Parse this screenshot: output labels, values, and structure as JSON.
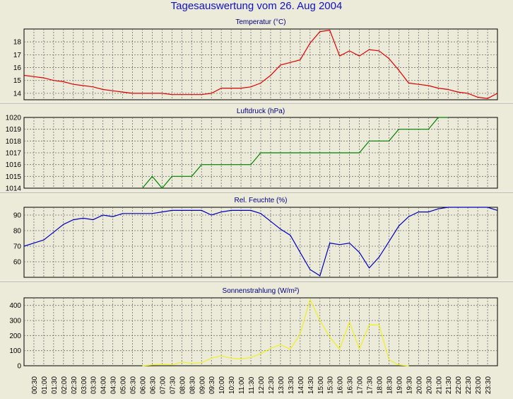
{
  "title": "Tagesauswertung vom 26. Aug 2004",
  "colors": {
    "background": "#ecead8",
    "title": "#1010d0",
    "temperature": "#e00000",
    "pressure": "#008000",
    "humidity": "#0000c0",
    "radiation": "#f0f020",
    "grid": "#707070"
  },
  "x_ticks": [
    "00:30",
    "01:00",
    "01:30",
    "02:00",
    "02:30",
    "03:00",
    "03:30",
    "04:00",
    "04:30",
    "05:00",
    "05:30",
    "06:00",
    "06:30",
    "07:00",
    "07:30",
    "08:00",
    "08:30",
    "09:00",
    "09:30",
    "10:00",
    "10:30",
    "11:00",
    "11:30",
    "12:00",
    "12:30",
    "13:00",
    "13:30",
    "14:00",
    "14:30",
    "15:00",
    "15:30",
    "16:00",
    "16:30",
    "17:00",
    "17:30",
    "18:00",
    "18:30",
    "19:00",
    "19:30",
    "20:00",
    "20:30",
    "21:00",
    "21:30",
    "22:00",
    "22:30",
    "23:00",
    "23:30"
  ],
  "chart_data": [
    {
      "type": "line",
      "title": "Temperatur (°C)",
      "ylim": [
        13.5,
        19
      ],
      "yticks": [
        14,
        15,
        16,
        17,
        18
      ],
      "grid": true,
      "series": [
        {
          "x": [
            0,
            0.5,
            1,
            1.5,
            2,
            2.5,
            3,
            3.5,
            4,
            4.5,
            5,
            5.5,
            6,
            6.5,
            7,
            7.5,
            8,
            8.5,
            9,
            9.5,
            10,
            10.5,
            11,
            11.5,
            12,
            12.5,
            13,
            13.5,
            14,
            14.5,
            15,
            15.5,
            16,
            16.5,
            17,
            17.5,
            18,
            18.5,
            19,
            19.5,
            20,
            20.5,
            21,
            21.5,
            22,
            22.5,
            23,
            23.5,
            24
          ],
          "values": [
            15.4,
            15.3,
            15.2,
            15.0,
            14.9,
            14.7,
            14.6,
            14.5,
            14.3,
            14.2,
            14.1,
            14.0,
            14.0,
            14.0,
            14.0,
            13.9,
            13.9,
            13.9,
            13.9,
            14.0,
            14.4,
            14.4,
            14.4,
            14.5,
            14.8,
            15.4,
            16.2,
            16.4,
            16.6,
            17.9,
            18.8,
            18.9,
            16.9,
            17.3,
            16.9,
            17.4,
            17.3,
            16.7,
            15.8,
            14.8,
            14.7,
            14.6,
            14.4,
            14.3,
            14.1,
            14.0,
            13.7,
            13.6,
            14.0
          ]
        }
      ]
    },
    {
      "type": "line",
      "title": "Luftdruck (hPa)",
      "ylim": [
        1014,
        1020
      ],
      "yticks": [
        1014,
        1015,
        1016,
        1017,
        1018,
        1019,
        1020
      ],
      "grid": true,
      "series": [
        {
          "x": [
            6,
            6.5,
            7,
            7.5,
            8,
            8.5,
            9,
            9.5,
            10,
            10.5,
            11,
            11.5,
            12,
            12.5,
            13,
            13.5,
            14,
            14.5,
            15,
            15.5,
            16,
            16.5,
            17,
            17.5,
            18,
            18.5,
            19,
            19.5,
            20,
            20.5,
            21,
            21.5
          ],
          "values": [
            1014,
            1015,
            1014,
            1015,
            1015,
            1015,
            1016,
            1016,
            1016,
            1016,
            1016,
            1016,
            1017,
            1017,
            1017,
            1017,
            1017,
            1017,
            1017,
            1017,
            1017,
            1017,
            1017,
            1018,
            1018,
            1018,
            1019,
            1019,
            1019,
            1019,
            1020,
            1020
          ]
        }
      ]
    },
    {
      "type": "line",
      "title": "Rel. Feuchte (%)",
      "ylim": [
        50,
        95
      ],
      "yticks": [
        60,
        70,
        80,
        90
      ],
      "grid": true,
      "series": [
        {
          "x": [
            0,
            0.5,
            1,
            1.5,
            2,
            2.5,
            3,
            3.5,
            4,
            4.5,
            5,
            5.5,
            6,
            6.5,
            7,
            7.5,
            8,
            8.5,
            9,
            9.5,
            10,
            10.5,
            11,
            11.5,
            12,
            12.5,
            13,
            13.5,
            14,
            14.5,
            15,
            15.5,
            16,
            16.5,
            17,
            17.5,
            18,
            18.5,
            19,
            19.5,
            20,
            20.5,
            21,
            21.5,
            22,
            22.5,
            23,
            23.5,
            24
          ],
          "values": [
            70,
            72,
            74,
            79,
            84,
            87,
            88,
            87,
            90,
            89,
            91,
            91,
            91,
            91,
            92,
            93,
            93,
            93,
            93,
            90,
            92,
            93,
            93,
            93,
            91,
            86,
            81,
            77,
            66,
            55,
            51,
            72,
            71,
            72,
            66,
            56,
            63,
            73,
            83,
            89,
            92,
            92,
            94,
            95,
            95,
            95,
            95,
            95,
            93
          ]
        }
      ]
    },
    {
      "type": "line",
      "title": "Sonnenstrahlung (W/m²)",
      "ylim": [
        0,
        450
      ],
      "yticks": [
        0,
        100,
        200,
        300,
        400
      ],
      "grid": true,
      "series": [
        {
          "x": [
            6,
            6.5,
            7,
            7.5,
            8,
            8.5,
            9,
            9.5,
            10,
            10.5,
            11,
            11.5,
            12,
            12.5,
            13,
            13.5,
            14,
            14.5,
            15,
            15.5,
            16,
            16.5,
            17,
            17.5,
            18,
            18.5,
            19,
            19.5
          ],
          "values": [
            0,
            5,
            10,
            5,
            25,
            15,
            20,
            50,
            65,
            50,
            45,
            55,
            80,
            115,
            140,
            110,
            210,
            440,
            300,
            190,
            110,
            290,
            110,
            270,
            270,
            40,
            5,
            0
          ]
        }
      ]
    }
  ]
}
